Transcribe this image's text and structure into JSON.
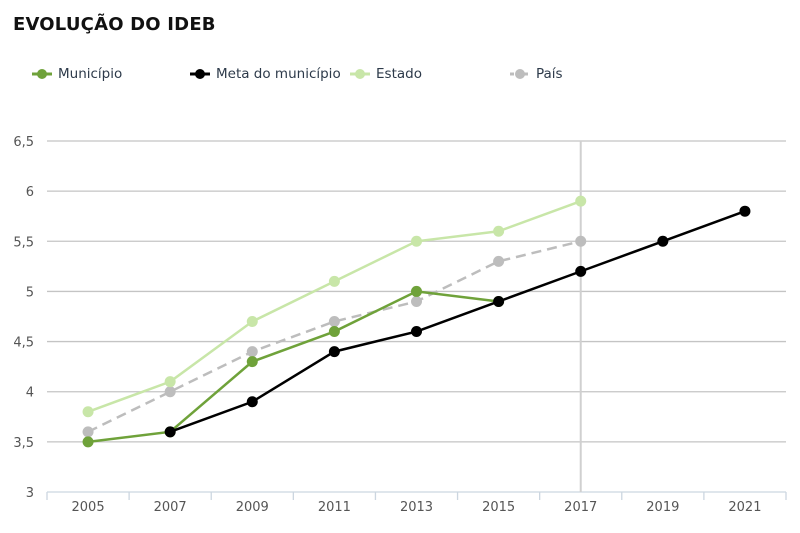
{
  "header": {
    "title": "EVOLUÇÃO DO IDEB"
  },
  "chart_data": {
    "type": "line",
    "title": "EVOLUÇÃO DO IDEB",
    "xlabel": "",
    "ylabel": "",
    "categories": [
      "2005",
      "2007",
      "2009",
      "2011",
      "2013",
      "2015",
      "2017",
      "2019",
      "2021"
    ],
    "y_ticks": [
      "3",
      "3,5",
      "4",
      "4,5",
      "5",
      "5,5",
      "6",
      "6,5"
    ],
    "ylim": [
      3,
      6.5
    ],
    "grid": true,
    "legend_position": "top",
    "highlight_category": "2017",
    "series": [
      {
        "name": "Município",
        "color": "#6fa23a",
        "dashed": false,
        "values": [
          3.5,
          3.6,
          4.3,
          4.6,
          5.0,
          4.9,
          null,
          null,
          null
        ]
      },
      {
        "name": "Meta do município",
        "color": "#000000",
        "dashed": false,
        "values": [
          null,
          3.6,
          3.9,
          4.4,
          4.6,
          4.9,
          5.2,
          5.5,
          5.8
        ]
      },
      {
        "name": "Estado",
        "color": "#c8e6a8",
        "dashed": false,
        "values": [
          3.8,
          4.1,
          4.7,
          5.1,
          5.5,
          5.6,
          5.9,
          null,
          null
        ]
      },
      {
        "name": "País",
        "color": "#bdbdbd",
        "dashed": true,
        "values": [
          3.6,
          4.0,
          4.4,
          4.7,
          4.9,
          5.3,
          5.5,
          null,
          null
        ]
      }
    ]
  }
}
